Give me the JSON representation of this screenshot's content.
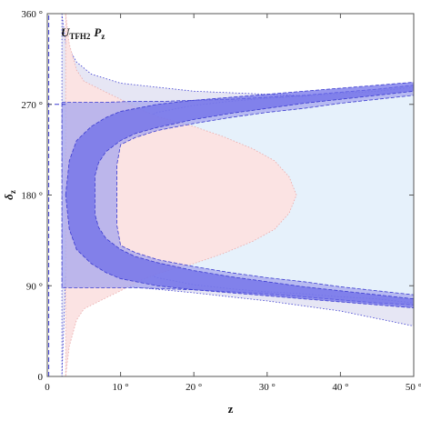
{
  "chart_data": {
    "type": "area",
    "xlabel": "z",
    "ylabel": "δ",
    "ylabel_sub": "z",
    "annotation": {
      "main": "U",
      "sub": "TFH2",
      "tail": "P",
      "tail_sub": "z"
    },
    "xlim": [
      0,
      50
    ],
    "ylim": [
      0,
      360
    ],
    "x_ticks": [
      {
        "value": 0,
        "label": "0"
      },
      {
        "value": 10,
        "label": "10 °"
      },
      {
        "value": 20,
        "label": "20 °"
      },
      {
        "value": 30,
        "label": "30 °"
      },
      {
        "value": 40,
        "label": "40 °"
      },
      {
        "value": 50,
        "label": "50 °"
      }
    ],
    "y_ticks": [
      {
        "value": 0,
        "label": "0"
      },
      {
        "value": 90,
        "label": "90 °"
      },
      {
        "value": 180,
        "label": "180 °"
      },
      {
        "value": 270,
        "label": "270 °"
      },
      {
        "value": 360,
        "label": "360 °"
      }
    ],
    "grid": false,
    "colors": {
      "outer_lavender": "#e6e6f4",
      "light_blue": "#e6f1fb",
      "pink": "#fbe3e3",
      "blue_mid": "#a7a7ee",
      "blue_dark": "#6a6ae8",
      "blue_line": "#3a3ad0",
      "pink_line": "#e9a8a8",
      "contour": "#000000"
    },
    "regions": [
      {
        "name": "lavender-band",
        "fill": "outer_lavender",
        "upper": [
          [
            2,
            360
          ],
          [
            2.5,
            331
          ],
          [
            4,
            312
          ],
          [
            6,
            300
          ],
          [
            10,
            291
          ],
          [
            20,
            283
          ],
          [
            30,
            280
          ],
          [
            40,
            277
          ],
          [
            50,
            275
          ]
        ],
        "lower": [
          [
            50,
            50
          ],
          [
            40,
            65
          ],
          [
            30,
            75
          ],
          [
            20,
            83
          ],
          [
            10,
            90
          ],
          [
            6,
            94
          ],
          [
            4,
            98
          ],
          [
            2.5,
            99
          ],
          [
            2,
            0
          ]
        ]
      },
      {
        "name": "light-blue-region",
        "fill": "light_blue",
        "upper": [
          [
            50,
            287
          ],
          [
            45,
            283
          ],
          [
            40,
            281
          ],
          [
            35,
            278
          ],
          [
            30,
            276
          ],
          [
            25,
            273
          ],
          [
            20,
            269
          ],
          [
            15,
            262
          ],
          [
            12,
            252
          ],
          [
            10,
            238
          ],
          [
            9.5,
            222
          ],
          [
            9.5,
            180
          ]
        ],
        "lower": [
          [
            9.5,
            180
          ],
          [
            9.5,
            138
          ],
          [
            10,
            122
          ],
          [
            12,
            108
          ],
          [
            15,
            98
          ],
          [
            20,
            91
          ],
          [
            25,
            87
          ],
          [
            30,
            84
          ],
          [
            35,
            82
          ],
          [
            40,
            79
          ],
          [
            45,
            77
          ],
          [
            50,
            73
          ]
        ],
        "cap": [
          [
            30,
            222
          ],
          [
            30,
            138
          ]
        ]
      },
      {
        "name": "pink-region",
        "fill": "pink",
        "upper": [
          [
            2.5,
            360
          ],
          [
            3,
            330
          ],
          [
            4,
            304
          ],
          [
            5,
            293
          ],
          [
            8,
            282
          ],
          [
            10,
            275
          ],
          [
            12,
            267
          ],
          [
            15,
            258
          ],
          [
            20,
            248
          ],
          [
            24,
            238
          ],
          [
            28,
            226
          ],
          [
            31,
            214
          ],
          [
            33,
            198
          ],
          [
            34,
            180
          ]
        ],
        "lower": [
          [
            34,
            180
          ],
          [
            33,
            162
          ],
          [
            31,
            146
          ],
          [
            28,
            134
          ],
          [
            24,
            122
          ],
          [
            20,
            112
          ],
          [
            15,
            102
          ],
          [
            12,
            93
          ],
          [
            10,
            85
          ],
          [
            8,
            78
          ],
          [
            5,
            67
          ],
          [
            4,
            56
          ],
          [
            3,
            30
          ],
          [
            2.5,
            0
          ]
        ]
      },
      {
        "name": "mid-blue-band",
        "fill": "blue_mid",
        "upper": [
          [
            2,
            272
          ],
          [
            5,
            272
          ],
          [
            8,
            272
          ],
          [
            12,
            273
          ],
          [
            16,
            273
          ],
          [
            20,
            274
          ],
          [
            25,
            275
          ],
          [
            30,
            277
          ],
          [
            35,
            279
          ],
          [
            40,
            282
          ],
          [
            45,
            285
          ],
          [
            50,
            289
          ]
        ],
        "inner": [
          [
            50,
            279
          ],
          [
            45,
            275
          ],
          [
            40,
            271
          ],
          [
            35,
            266
          ],
          [
            30,
            262
          ],
          [
            25,
            257
          ],
          [
            20,
            251
          ],
          [
            15,
            244
          ],
          [
            12,
            237
          ],
          [
            10,
            230
          ],
          [
            9.5,
            210
          ],
          [
            9.5,
            180
          ]
        ],
        "lower_inner": [
          [
            9.5,
            180
          ],
          [
            9.5,
            150
          ],
          [
            10,
            130
          ],
          [
            12,
            123
          ],
          [
            15,
            116
          ],
          [
            20,
            109
          ],
          [
            25,
            103
          ],
          [
            30,
            98
          ],
          [
            35,
            94
          ],
          [
            40,
            89
          ],
          [
            45,
            85
          ],
          [
            50,
            81
          ]
        ],
        "lower": [
          [
            50,
            71
          ],
          [
            45,
            73
          ],
          [
            40,
            76
          ],
          [
            35,
            79
          ],
          [
            30,
            82
          ],
          [
            25,
            84
          ],
          [
            20,
            86
          ],
          [
            16,
            87
          ],
          [
            12,
            88
          ],
          [
            8,
            88
          ],
          [
            5,
            88
          ],
          [
            2,
            88
          ]
        ]
      },
      {
        "name": "dark-blue-band",
        "fill": "blue_dark",
        "upper": [
          [
            2.5,
            180
          ],
          [
            3,
            214
          ],
          [
            4,
            234
          ],
          [
            6,
            248
          ],
          [
            8,
            257
          ],
          [
            10,
            263
          ],
          [
            15,
            270
          ],
          [
            20,
            274
          ],
          [
            25,
            277
          ],
          [
            30,
            280
          ],
          [
            35,
            283
          ],
          [
            40,
            286
          ],
          [
            45,
            289
          ],
          [
            50,
            292
          ]
        ],
        "inner": [
          [
            50,
            283
          ],
          [
            45,
            279
          ],
          [
            40,
            275
          ],
          [
            35,
            271
          ],
          [
            30,
            266
          ],
          [
            25,
            261
          ],
          [
            20,
            255
          ],
          [
            15,
            247
          ],
          [
            12,
            241
          ],
          [
            10,
            234
          ],
          [
            8,
            223
          ],
          [
            7,
            212
          ],
          [
            6.5,
            199
          ],
          [
            6.5,
            180
          ]
        ],
        "lower_inner": [
          [
            6.5,
            180
          ],
          [
            6.5,
            161
          ],
          [
            7,
            148
          ],
          [
            8,
            137
          ],
          [
            10,
            126
          ],
          [
            12,
            119
          ],
          [
            15,
            113
          ],
          [
            20,
            105
          ],
          [
            25,
            99
          ],
          [
            30,
            94
          ],
          [
            35,
            89
          ],
          [
            40,
            85
          ],
          [
            45,
            81
          ],
          [
            50,
            77
          ]
        ],
        "lower": [
          [
            50,
            68
          ],
          [
            45,
            71
          ],
          [
            40,
            74
          ],
          [
            35,
            77
          ],
          [
            30,
            80
          ],
          [
            25,
            83
          ],
          [
            20,
            86
          ],
          [
            15,
            90
          ],
          [
            10,
            97
          ],
          [
            8,
            103
          ],
          [
            6,
            112
          ],
          [
            4,
            126
          ],
          [
            3,
            146
          ],
          [
            2.5,
            180
          ]
        ]
      }
    ],
    "contours": [
      {
        "name": "solid-contour-inner",
        "style": "solid",
        "scale": 1.0
      },
      {
        "name": "solid-contour-outer",
        "style": "solid",
        "scale": 1.06
      },
      {
        "name": "dashed-contour-1",
        "style": "dashed",
        "scale": 1.12
      },
      {
        "name": "dashed-contour-2",
        "style": "dashed",
        "scale": 1.18
      },
      {
        "name": "dotted-contour",
        "style": "dotted",
        "scale": 1.24
      }
    ],
    "contour_shape": {
      "left": 5.5,
      "right": 26,
      "center": 180,
      "half_height": 48
    },
    "reference_lines": [
      {
        "name": "vertical-dashed-line",
        "x": 0.2,
        "style": "dashed"
      },
      {
        "name": "horizontal-270-dashed",
        "y": 270,
        "style": "dashed"
      }
    ]
  }
}
